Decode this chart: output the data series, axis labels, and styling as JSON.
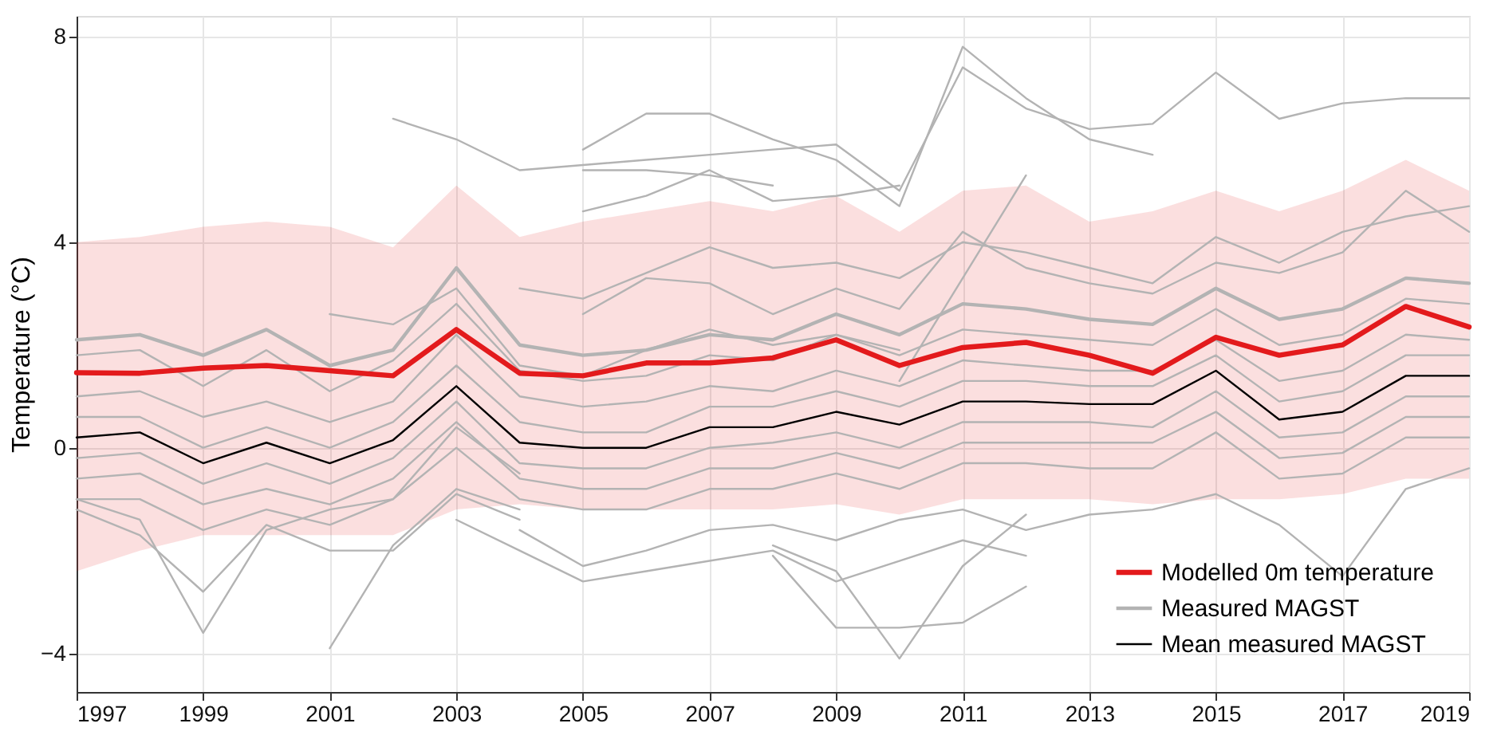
{
  "chart_data": {
    "type": "line",
    "ylabel": "Temperature (°C)",
    "x": [
      1997,
      1998,
      1999,
      2000,
      2001,
      2002,
      2003,
      2004,
      2005,
      2006,
      2007,
      2008,
      2009,
      2010,
      2011,
      2012,
      2013,
      2014,
      2015,
      2016,
      2017,
      2018,
      2019
    ],
    "xlim": [
      1997,
      2019
    ],
    "xticks": [
      1997,
      1999,
      2001,
      2003,
      2005,
      2007,
      2009,
      2011,
      2013,
      2015,
      2017,
      2019
    ],
    "ylim": [
      -4.75,
      8.4
    ],
    "yticks": [
      -4,
      0,
      4,
      8
    ],
    "grid": true,
    "legend": "bottom right",
    "marker": "none",
    "line_style": "solid",
    "series": [
      {
        "name": "Modelled 0m temperature",
        "color": "#e31a1c",
        "values": [
          1.46,
          1.45,
          1.55,
          1.6,
          1.5,
          1.4,
          2.3,
          1.45,
          1.4,
          1.65,
          1.65,
          1.75,
          2.1,
          1.6,
          1.95,
          2.05,
          1.8,
          1.45,
          2.15,
          1.8,
          2.0,
          2.75,
          2.35
        ],
        "lower": [
          -2.4,
          -2.0,
          -1.7,
          -1.7,
          -1.7,
          -1.7,
          -1.2,
          -1.1,
          -1.2,
          -1.2,
          -1.2,
          -1.2,
          -1.1,
          -1.3,
          -1.0,
          -1.0,
          -1.0,
          -1.1,
          -1.0,
          -1.0,
          -0.9,
          -0.6,
          -0.6
        ],
        "upper": [
          4.0,
          4.1,
          4.3,
          4.4,
          4.3,
          3.9,
          5.1,
          4.1,
          4.4,
          4.6,
          4.8,
          4.6,
          4.9,
          4.2,
          5.0,
          5.1,
          4.4,
          4.6,
          5.0,
          4.6,
          5.0,
          5.6,
          5.0
        ]
      },
      {
        "name": "Measured MAGST",
        "color": "#b3b3b3",
        "values": [
          2.1,
          2.2,
          1.8,
          2.3,
          1.6,
          1.9,
          3.5,
          2.0,
          1.8,
          1.9,
          2.2,
          2.1,
          2.6,
          2.2,
          2.8,
          2.7,
          2.5,
          2.4,
          3.1,
          2.5,
          2.7,
          3.3,
          3.2
        ]
      },
      {
        "color": "#b3b3b3",
        "values": [
          1.8,
          1.9,
          1.2,
          1.9,
          1.1,
          1.7,
          2.8,
          1.5,
          1.3,
          1.4,
          1.8,
          1.7,
          2.2,
          1.8,
          2.3,
          2.2,
          2.1,
          2.0,
          2.7,
          2.0,
          2.2,
          2.9,
          2.8
        ]
      },
      {
        "color": "#b3b3b3",
        "values": [
          1.0,
          1.1,
          0.6,
          0.9,
          0.5,
          0.9,
          2.2,
          1.0,
          0.8,
          0.9,
          1.2,
          1.1,
          1.5,
          1.2,
          1.7,
          1.6,
          1.5,
          1.5,
          2.1,
          1.3,
          1.5,
          2.2,
          2.1
        ]
      },
      {
        "color": "#b3b3b3",
        "values": [
          0.6,
          0.6,
          0.0,
          0.4,
          0.0,
          0.5,
          1.6,
          0.5,
          0.3,
          0.3,
          0.8,
          0.8,
          1.1,
          0.8,
          1.3,
          1.3,
          1.2,
          1.2,
          1.8,
          0.9,
          1.1,
          1.8,
          1.8
        ]
      },
      {
        "color": "#b3b3b3",
        "values": [
          -0.2,
          -0.1,
          -0.7,
          -0.3,
          -0.7,
          -0.2,
          0.9,
          -0.3,
          -0.4,
          -0.4,
          0.0,
          0.1,
          0.3,
          0.0,
          0.5,
          0.5,
          0.5,
          0.4,
          1.1,
          0.2,
          0.3,
          1.0,
          1.0
        ]
      },
      {
        "color": "#b3b3b3",
        "values": [
          -0.6,
          -0.5,
          -1.1,
          -0.8,
          -1.1,
          -0.6,
          0.5,
          -0.6,
          -0.8,
          -0.8,
          -0.4,
          -0.4,
          -0.1,
          -0.4,
          0.1,
          0.1,
          0.1,
          0.1,
          0.7,
          -0.2,
          -0.1,
          0.6,
          0.6
        ]
      },
      {
        "color": "#b3b3b3",
        "values": [
          -1.0,
          -1.0,
          -1.6,
          -1.2,
          -1.5,
          -1.0,
          0.0,
          -1.0,
          -1.2,
          -1.2,
          -0.8,
          -0.8,
          -0.5,
          -0.8,
          -0.3,
          -0.3,
          -0.4,
          -0.4,
          0.3,
          -0.6,
          -0.5,
          0.2,
          0.2
        ]
      },
      {
        "color": "#b3b3b3",
        "values": [
          null,
          null,
          null,
          null,
          null,
          null,
          null,
          -1.6,
          -2.3,
          -2.0,
          -1.6,
          -1.5,
          -1.8,
          -1.4,
          -1.2,
          -1.6,
          -1.3,
          -1.2,
          -0.9,
          -1.5,
          -2.5,
          -0.8,
          -0.4
        ]
      },
      {
        "color": "#b3b3b3",
        "values": [
          null,
          null,
          null,
          null,
          null,
          null,
          -1.4,
          -2.0,
          -2.6,
          -2.4,
          -2.2,
          -2.0,
          -2.6,
          -2.2,
          -1.8,
          -2.1,
          null,
          null,
          null,
          null,
          null,
          null,
          null
        ]
      },
      {
        "color": "#b3b3b3",
        "values": [
          null,
          null,
          null,
          null,
          null,
          null,
          null,
          3.1,
          2.9,
          3.4,
          3.9,
          3.5,
          3.6,
          3.3,
          4.0,
          3.8,
          3.5,
          3.2,
          4.1,
          3.6,
          4.2,
          4.5,
          4.7
        ]
      },
      {
        "color": "#b3b3b3",
        "values": [
          null,
          null,
          null,
          null,
          null,
          null,
          null,
          null,
          2.6,
          3.3,
          3.2,
          2.6,
          3.1,
          2.7,
          4.2,
          3.5,
          3.2,
          3.0,
          3.6,
          3.4,
          3.8,
          5.0,
          4.2
        ]
      },
      {
        "color": "#b3b3b3",
        "values": [
          null,
          null,
          null,
          null,
          2.6,
          2.4,
          3.1,
          1.6,
          1.4,
          1.9,
          2.3,
          2.0,
          2.2,
          1.9,
          null,
          null,
          null,
          null,
          null,
          null,
          null,
          null,
          null
        ]
      },
      {
        "color": "#b3b3b3",
        "values": [
          -1.2,
          -1.7,
          -2.8,
          -1.5,
          -2.0,
          -2.0,
          -0.9,
          -1.4,
          null,
          null,
          null,
          null,
          null,
          null,
          null,
          null,
          null,
          null,
          null,
          null,
          null,
          null,
          null
        ]
      },
      {
        "color": "#b3b3b3",
        "values": [
          null,
          null,
          null,
          null,
          null,
          null,
          null,
          null,
          null,
          null,
          null,
          -1.9,
          -2.4,
          -4.1,
          -2.3,
          -1.3,
          null,
          null,
          null,
          null,
          null,
          null,
          null
        ]
      },
      {
        "color": "#b3b3b3",
        "values": [
          null,
          null,
          null,
          null,
          null,
          null,
          null,
          null,
          null,
          null,
          null,
          null,
          null,
          1.3,
          3.3,
          5.3,
          null,
          null,
          null,
          null,
          null,
          null,
          null
        ]
      },
      {
        "color": "#b3b3b3",
        "values": [
          null,
          null,
          null,
          null,
          null,
          null,
          null,
          null,
          null,
          null,
          null,
          -2.1,
          -3.5,
          -3.5,
          -3.4,
          -2.7,
          null,
          null,
          null,
          null,
          null,
          null,
          null
        ]
      },
      {
        "color": "#b3b3b3",
        "values": [
          -1.0,
          -1.4,
          -3.6,
          -1.6,
          -1.2,
          -1.0,
          0.4,
          -0.5,
          null,
          null,
          null,
          null,
          null,
          null,
          null,
          null,
          null,
          null,
          null,
          null,
          null,
          null,
          null
        ]
      },
      {
        "color": "#b3b3b3",
        "values": [
          null,
          null,
          null,
          null,
          -3.9,
          -1.9,
          -0.8,
          -1.2,
          null,
          null,
          null,
          null,
          null,
          null,
          null,
          null,
          null,
          null,
          null,
          null,
          null,
          null,
          null
        ]
      },
      {
        "color": "#b3b3b3",
        "values": [
          null,
          null,
          null,
          null,
          null,
          6.4,
          6.0,
          5.4,
          5.5,
          5.6,
          5.7,
          5.8,
          5.9,
          5.0,
          7.4,
          6.6,
          6.2,
          6.3,
          7.3,
          6.4,
          6.7,
          6.8,
          6.8
        ]
      },
      {
        "color": "#b3b3b3",
        "values": [
          null,
          null,
          null,
          null,
          null,
          null,
          null,
          null,
          5.8,
          6.5,
          6.5,
          6.0,
          5.6,
          4.7,
          7.8,
          6.8,
          6.0,
          5.7,
          null,
          null,
          null,
          null,
          null
        ]
      },
      {
        "color": "#b3b3b3",
        "values": [
          null,
          null,
          null,
          null,
          null,
          null,
          null,
          null,
          4.6,
          4.9,
          5.4,
          4.8,
          4.9,
          5.1,
          null,
          null,
          null,
          null,
          null,
          null,
          null,
          null,
          null
        ]
      },
      {
        "color": "#b3b3b3",
        "values": [
          null,
          null,
          null,
          null,
          null,
          null,
          null,
          null,
          5.4,
          5.4,
          5.3,
          5.1,
          null,
          null,
          null,
          null,
          null,
          null,
          null,
          null,
          null,
          null,
          null
        ]
      },
      {
        "name": "Mean measured MAGST",
        "color": "#000000",
        "values": [
          0.2,
          0.3,
          -0.3,
          0.1,
          -0.3,
          0.15,
          1.2,
          0.1,
          0.0,
          0.0,
          0.4,
          0.4,
          0.7,
          0.45,
          0.9,
          0.9,
          0.85,
          0.85,
          1.5,
          0.55,
          0.7,
          1.4,
          1.4
        ]
      }
    ]
  }
}
